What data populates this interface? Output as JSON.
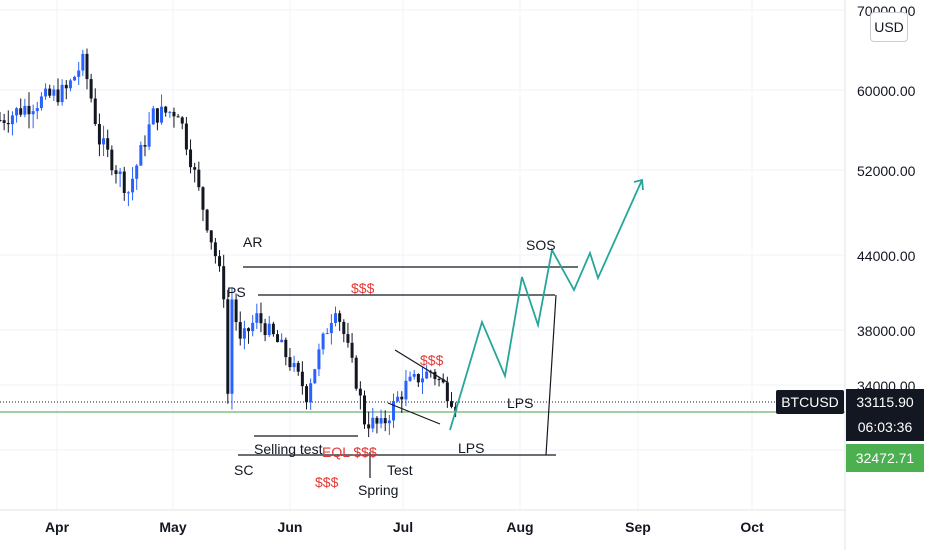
{
  "symbol_tag": "BTCUSD",
  "currency_button": "USD",
  "last_price_label": "33115.90",
  "countdown": "06:03:36",
  "level_price_label": "32472.71",
  "y_axis_labels": [
    "70000.00",
    "60000.00",
    "52000.00",
    "44000.00",
    "38000.00",
    "34000.00"
  ],
  "x_axis_labels": [
    "Apr",
    "May",
    "Jun",
    "Jul",
    "Aug",
    "Sep",
    "Oct"
  ],
  "annotations": {
    "ar": "AR",
    "ps": "PS",
    "sc": "SC",
    "selling_test": "Selling test",
    "eql": "EQL $$$",
    "dollars_top": "$$$",
    "dollars_mid": "$$$",
    "dollars_low": "$$$",
    "spring": "Spring",
    "test": "Test",
    "lps_1": "LPS",
    "lps_2": "LPS",
    "sos": "SOS"
  },
  "colors": {
    "up_candle": "#2962ff",
    "down_candle": "#131722",
    "projection": "#26a69a",
    "level_line": "#43a047",
    "price_tag_bg": "#131722",
    "level_tag_bg": "#4caf50",
    "annotation_red": "#e53935",
    "annotation_dark": "#131722"
  },
  "chart_data": {
    "type": "candlestick",
    "symbol": "BTCUSD",
    "y_range": [
      28000,
      70000
    ],
    "x_range": [
      "2021-03-25",
      "2021-10-15"
    ],
    "last_price": 33115.9,
    "support_level": 32472.71,
    "trading_range": {
      "resistance_top": 42600,
      "resistance": 40800,
      "support": 30000,
      "selling_test_level": 31300
    },
    "weekly_path": [
      {
        "date": "2021-03-25",
        "price": 57000
      },
      {
        "date": "2021-04-01",
        "price": 58500
      },
      {
        "date": "2021-04-10",
        "price": 60000
      },
      {
        "date": "2021-04-14",
        "price": 63500
      },
      {
        "date": "2021-04-18",
        "price": 55000
      },
      {
        "date": "2021-04-25",
        "price": 50000
      },
      {
        "date": "2021-05-01",
        "price": 57500
      },
      {
        "date": "2021-05-07",
        "price": 58000
      },
      {
        "date": "2021-05-12",
        "price": 50000
      },
      {
        "date": "2021-05-18",
        "price": 41000
      },
      {
        "date": "2021-05-19",
        "price": 33500
      },
      {
        "date": "2021-05-20",
        "price": 40500
      },
      {
        "date": "2021-05-22",
        "price": 37000
      },
      {
        "date": "2021-05-26",
        "price": 39000
      },
      {
        "date": "2021-06-01",
        "price": 36700
      },
      {
        "date": "2021-06-07",
        "price": 33500
      },
      {
        "date": "2021-06-14",
        "price": 40000
      },
      {
        "date": "2021-06-21",
        "price": 32000
      },
      {
        "date": "2021-06-25",
        "price": 31600
      },
      {
        "date": "2021-07-01",
        "price": 34000
      },
      {
        "date": "2021-07-07",
        "price": 35000
      },
      {
        "date": "2021-07-13",
        "price": 33000
      }
    ],
    "projection_path": [
      {
        "date": "2021-07-13",
        "price": 32000
      },
      {
        "date": "2021-07-21",
        "price": 37500
      },
      {
        "date": "2021-07-28",
        "price": 34000
      },
      {
        "date": "2021-08-03",
        "price": 41500
      },
      {
        "date": "2021-08-09",
        "price": 37600
      },
      {
        "date": "2021-08-13",
        "price": 44200
      },
      {
        "date": "2021-08-20",
        "price": 40800
      },
      {
        "date": "2021-08-25",
        "price": 43600
      },
      {
        "date": "2021-08-28",
        "price": 41300
      },
      {
        "date": "2021-09-05",
        "price": 48000
      }
    ]
  }
}
